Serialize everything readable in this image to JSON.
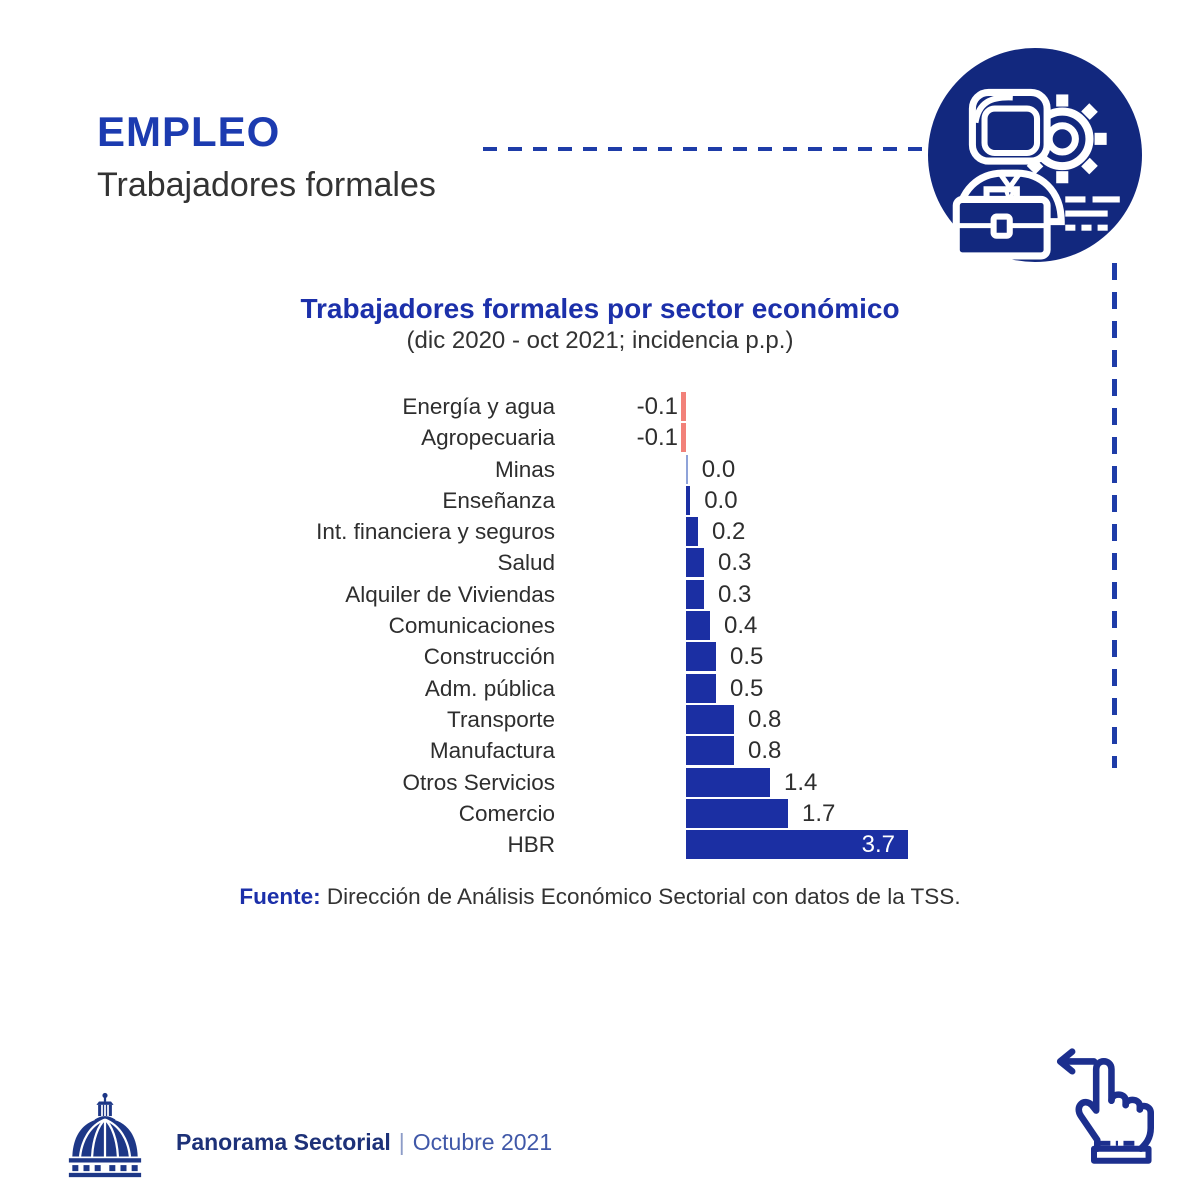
{
  "colors": {
    "primary_blue": "#1c3bb0",
    "title_blue": "#1c30aa",
    "navy": "#12287e",
    "dash_blue": "#1e3ca8",
    "bar_blue": "#1b2fa3",
    "negative_red": "#f28179",
    "near_zero_blue": "#8fa3d9",
    "footer_navy": "#1d3178",
    "footer_blue": "#4058a8",
    "hand_blue": "#1c2f8e",
    "dome_blue": "#1d3787",
    "text_dark": "#2e2e2e"
  },
  "header": {
    "title": "EMPLEO",
    "subtitle": "Trabajadores formales"
  },
  "icons": {
    "badge": "worker-gear-briefcase-icon",
    "footer_logo": "national-palace-dome-icon",
    "swipe": "swipe-left-hand-icon"
  },
  "chart_data": {
    "type": "bar",
    "orientation": "horizontal",
    "title": "Trabajadores formales por sector económico",
    "subtitle": "(dic 2020 - oct 2021; incidencia p.p.)",
    "categories": [
      "Energía y agua",
      "Agropecuaria",
      "Minas",
      "Enseñanza",
      "Int. financiera y seguros",
      "Salud",
      "Alquiler de Viviendas",
      "Comunicaciones",
      "Construcción",
      "Adm. pública",
      "Transporte",
      "Manufactura",
      "Otros Servicios",
      "Comercio",
      "HBR"
    ],
    "values": [
      -0.1,
      -0.1,
      0.0,
      0.0,
      0.2,
      0.3,
      0.3,
      0.4,
      0.5,
      0.5,
      0.8,
      0.8,
      1.4,
      1.7,
      3.7
    ],
    "value_labels": [
      "-0.1",
      "-0.1",
      "0.0",
      "0.0",
      "0.2",
      "0.3",
      "0.3",
      "0.4",
      "0.5",
      "0.5",
      "0.8",
      "0.8",
      "1.4",
      "1.7",
      "3.7"
    ],
    "bar_lengths_est": [
      0.09,
      0.09,
      0.03,
      0.07,
      0.2,
      0.3,
      0.3,
      0.4,
      0.5,
      0.5,
      0.8,
      0.8,
      1.4,
      1.7,
      3.7
    ],
    "inside_label_index": 14,
    "xlabel": "",
    "ylabel": "",
    "grid": false,
    "legend": false,
    "data_labels": true,
    "xlim": [
      -0.2,
      4.0
    ]
  },
  "source": {
    "label": "Fuente:",
    "text": " Dirección de Análisis Económico Sectorial con datos de la TSS."
  },
  "footer": {
    "brand": "Panorama Sectorial",
    "separator": "|",
    "issue": "Octubre 2021"
  }
}
